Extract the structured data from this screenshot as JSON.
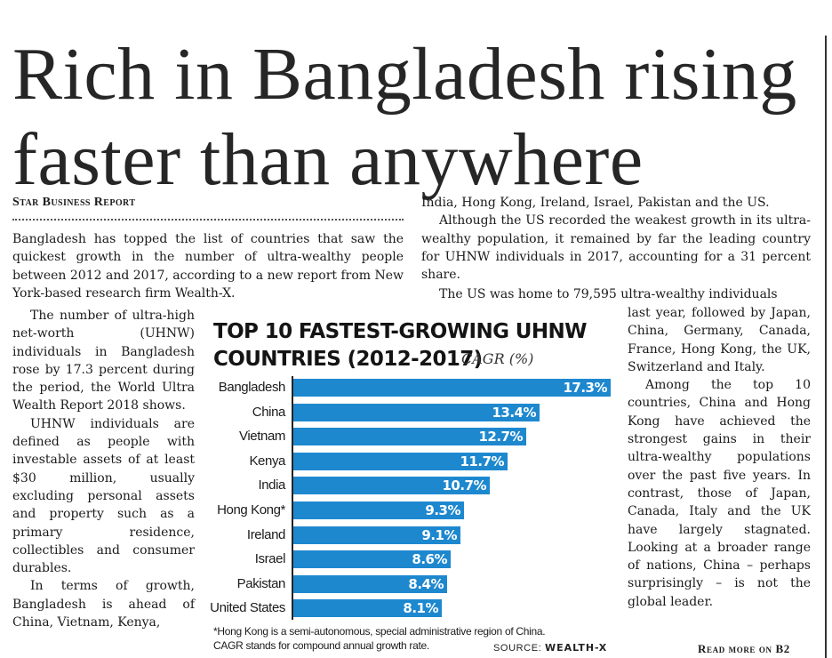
{
  "headline": [
    "Rich in Bangladesh rising",
    "faster than anywhere"
  ],
  "byline": "Star Business Report",
  "lead": "Bangladesh has topped the list of countries that saw the quickest growth in the number of ultra-wealthy people between 2012 and 2017, according to a new report from New York-based research firm Wealth-X.",
  "left_column": [
    "The number of ultra-high net-worth (UHNW) individuals in Bangladesh rose by 17.3 percent during the period, the World Ultra Wealth Report 2018 shows.",
    "UHNW individuals are defined as people with investable assets of at least $30 million, usually excluding personal assets and property such as a primary residence, collectibles and consumer durables.",
    "In terms of growth, Bangladesh is ahead of China, Vietnam, Kenya,"
  ],
  "right_top": [
    "India, Hong Kong, Ireland, Israel, Pakistan and the US.",
    "Although the US recorded the weakest growth in its ultra-wealthy population, it remained by far the leading country for UHNW individuals in 2017, accounting for a 31 percent share."
  ],
  "right_continued_first": "The US was home to 79,595 ultra-wealthy individuals",
  "right_column": [
    "last year, followed by Japan, China, Germany, Canada, France, Hong Kong, the UK, Switzerland and Italy.",
    "Among the top 10 countries, China and Hong Kong have achieved the strongest gains in their ultra-wealthy populations over the past five years. In contrast, those of Japan, Canada, Italy and the UK have largely stagnated. Looking at a broader range of nations, China – perhaps surprisingly – is not the global leader."
  ],
  "read_more": "Read more on B2",
  "chart_data": {
    "type": "bar",
    "orientation": "horizontal",
    "title": [
      "TOP 10 FASTEST-GROWING UHNW",
      "COUNTRIES (2012-2017)"
    ],
    "unit_label": "CAGR (%)",
    "categories": [
      "Bangladesh",
      "China",
      "Vietnam",
      "Kenya",
      "India",
      "Hong Kong*",
      "Ireland",
      "Israel",
      "Pakistan",
      "United States"
    ],
    "values": [
      17.3,
      13.4,
      12.7,
      11.7,
      10.7,
      9.3,
      9.1,
      8.6,
      8.4,
      8.1
    ],
    "value_labels": [
      "17.3%",
      "13.4%",
      "12.7%",
      "11.7%",
      "10.7%",
      "9.3%",
      "9.1%",
      "8.6%",
      "8.4%",
      "8.1%"
    ],
    "bar_color": "#1e88cf",
    "grid": false,
    "footnote": [
      "*Hong Kong is a semi-autonomous, special administrative region of China.",
      "CAGR stands for compound annual growth rate."
    ],
    "source_label": "SOURCE:",
    "source_name": "WEALTH-X"
  }
}
